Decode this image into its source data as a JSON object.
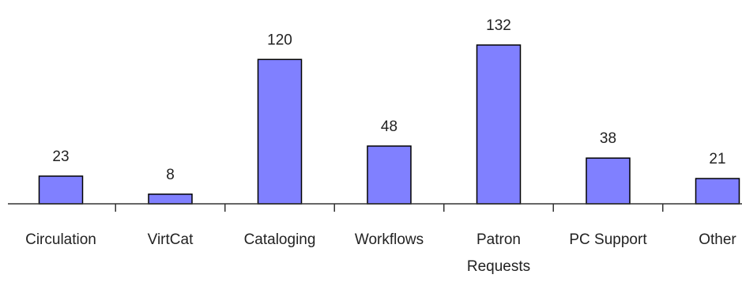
{
  "chart_data": {
    "type": "bar",
    "categories": [
      "Circulation",
      "VirtCat",
      "Cataloging",
      "Workflows",
      "Patron Requests",
      "PC Support",
      "Other"
    ],
    "category_lines": [
      [
        "Circulation"
      ],
      [
        "VirtCat"
      ],
      [
        "Cataloging"
      ],
      [
        "Workflows"
      ],
      [
        "Patron",
        "Requests"
      ],
      [
        "PC Support"
      ],
      [
        "Other"
      ]
    ],
    "values": [
      23,
      8,
      120,
      48,
      132,
      38,
      21
    ],
    "data_labels": [
      "23",
      "8",
      "120",
      "48",
      "132",
      "38",
      "21"
    ],
    "title": "",
    "xlabel": "",
    "ylabel": "",
    "ylim": [
      0,
      132
    ],
    "grid": false,
    "legend": "none",
    "colors": {
      "bar_fill": "#8080ff",
      "bar_stroke": "#000000",
      "axis": "#333333",
      "text": "#222222"
    }
  }
}
